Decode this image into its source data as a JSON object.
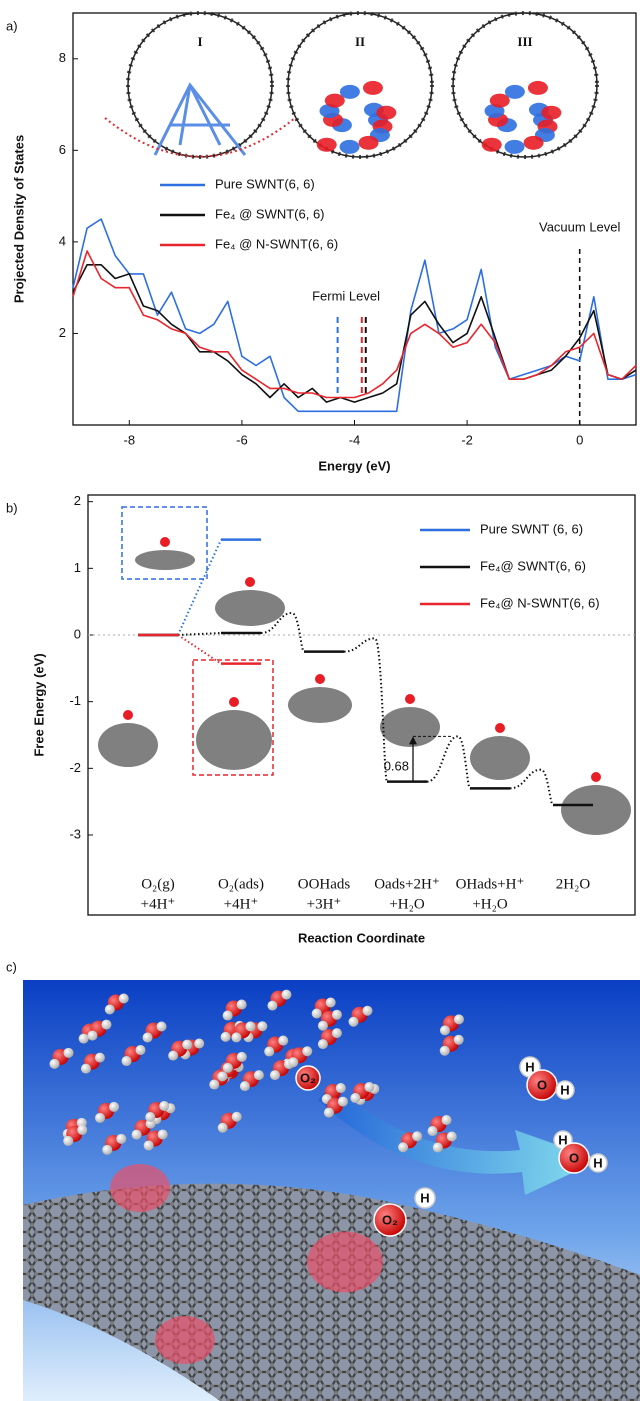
{
  "chart_data": [
    {
      "type": "line",
      "panel_label": "a)",
      "xlabel": "Energy (eV)",
      "ylabel": "Projected Density of States",
      "xlim": [
        -9,
        1
      ],
      "ylim": [
        0,
        9
      ],
      "xticks": [
        -8,
        -6,
        -4,
        -2,
        0
      ],
      "yticks": [
        2,
        4,
        6,
        8
      ],
      "x": [
        -9,
        -8.75,
        -8.5,
        -8.25,
        -8,
        -7.75,
        -7.5,
        -7.25,
        -7,
        -6.75,
        -6.5,
        -6.25,
        -6,
        -5.75,
        -5.5,
        -5.25,
        -5,
        -4.75,
        -4.5,
        -4.25,
        -4,
        -3.75,
        -3.5,
        -3.25,
        -3,
        -2.75,
        -2.5,
        -2.25,
        -2,
        -1.75,
        -1.5,
        -1.25,
        -1,
        -0.75,
        -0.5,
        -0.25,
        0,
        0.25,
        0.5,
        0.75,
        1
      ],
      "series": [
        {
          "name": "Pure SWNT(6, 6)",
          "color": "#2d6fe0",
          "values": [
            3.0,
            4.3,
            4.5,
            3.7,
            3.3,
            3.3,
            2.4,
            2.9,
            2.1,
            2.0,
            2.2,
            2.7,
            1.5,
            1.3,
            1.5,
            0.6,
            0.3,
            0.3,
            0.3,
            0.3,
            0.3,
            0.3,
            0.3,
            0.3,
            2.5,
            3.6,
            2.0,
            2.1,
            2.3,
            3.4,
            1.7,
            1.0,
            1.1,
            1.2,
            1.3,
            1.5,
            1.4,
            2.8,
            1.0,
            1.0,
            1.1
          ]
        },
        {
          "name": "Fe₄ @ SWNT(6, 6)",
          "color": "#111111",
          "values": [
            2.9,
            3.5,
            3.5,
            3.2,
            3.3,
            2.6,
            2.5,
            2.2,
            2.0,
            1.6,
            1.6,
            1.4,
            1.1,
            0.9,
            0.6,
            0.9,
            0.6,
            0.8,
            0.5,
            0.6,
            0.5,
            0.6,
            0.7,
            0.9,
            2.4,
            2.7,
            2.2,
            1.8,
            2.0,
            2.8,
            1.9,
            1.0,
            1.0,
            1.1,
            1.2,
            1.5,
            1.9,
            2.5,
            1.1,
            1.0,
            1.2
          ]
        },
        {
          "name": "Fe₄ @ N-SWNT(6, 6)",
          "color": "#e8262d",
          "values": [
            2.8,
            3.8,
            3.2,
            3.0,
            3.0,
            2.4,
            2.3,
            2.1,
            2.0,
            1.7,
            1.6,
            1.6,
            1.2,
            1.0,
            0.8,
            0.8,
            0.7,
            0.7,
            0.6,
            0.6,
            0.6,
            0.7,
            0.9,
            1.2,
            2.0,
            2.2,
            2.0,
            1.7,
            1.8,
            2.2,
            1.8,
            1.0,
            1.0,
            1.1,
            1.3,
            1.6,
            1.7,
            2.0,
            1.1,
            1.0,
            1.3
          ]
        }
      ],
      "fermi_levels": {
        "label": "Fermi Level",
        "values": [
          -4.3,
          -3.8,
          -3.87
        ]
      },
      "vacuum_level": {
        "label": "Vacuum Level",
        "value": 0
      },
      "structure_labels": [
        "I",
        "II",
        "III"
      ]
    },
    {
      "type": "level",
      "panel_label": "b)",
      "xlabel": "Reaction Coordinate",
      "ylabel": "Free Energy (eV)",
      "ylim": [
        -4.2,
        2.1
      ],
      "yticks": [
        -3,
        -2,
        -1,
        0,
        1,
        2
      ],
      "zero_line": true,
      "categories": [
        [
          "O₂(g)",
          "+4H⁺"
        ],
        [
          "O₂(ads)",
          "+4H⁺"
        ],
        [
          "OOHads",
          "+3H⁺"
        ],
        [
          "Oads+2H⁺",
          "+H₂O"
        ],
        [
          "OHads+H⁺",
          "+H₂O"
        ],
        [
          "2H₂O"
        ]
      ],
      "series": [
        {
          "name": "Pure SWNT (6, 6)",
          "color": "#2d6fe0",
          "values": [
            0,
            1.43,
            null,
            null,
            null,
            null
          ]
        },
        {
          "name": "Fe₄@ SWNT(6, 6)",
          "color": "#111111",
          "values": [
            0,
            0.03,
            -0.25,
            -2.2,
            -2.3,
            -2.55
          ],
          "barriers": [
            null,
            0.33,
            -0.05,
            -1.52,
            -2.02
          ]
        },
        {
          "name": "Fe₄@ N-SWNT(6, 6)",
          "color": "#e8262d",
          "values": [
            0,
            -0.43,
            null,
            null,
            null,
            null
          ]
        }
      ],
      "barrier_height": 0.68
    }
  ],
  "figure_c": {
    "label": "c)",
    "molecule_labels": [
      "O₂",
      "O₂",
      "H",
      "H",
      "O",
      "H",
      "H",
      "O",
      "H"
    ]
  }
}
